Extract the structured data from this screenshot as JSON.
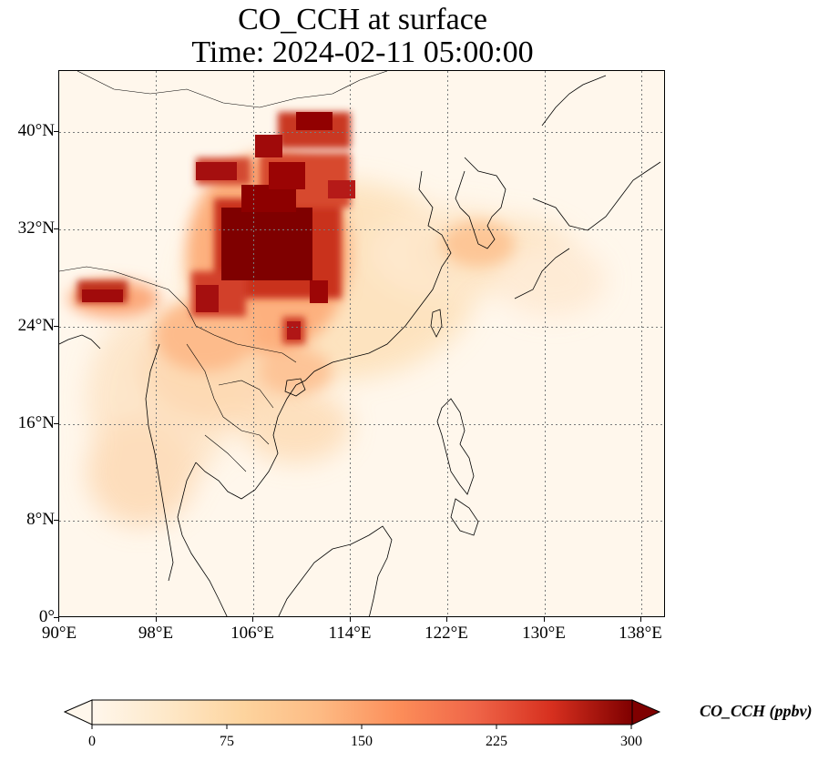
{
  "title_line1": "CO_CCH at surface",
  "title_line2": "Time: 2024-02-11 05:00:00",
  "x_ticks": [
    "90°E",
    "98°E",
    "106°E",
    "114°E",
    "122°E",
    "130°E",
    "138°E"
  ],
  "y_ticks": [
    "40°N",
    "32°N",
    "24°N",
    "16°N",
    "8°N",
    "0°"
  ],
  "colorbar": {
    "label": "CO_CCH (ppbv)",
    "ticks": [
      "0",
      "75",
      "150",
      "225",
      "300"
    ],
    "range": [
      0,
      300
    ],
    "colormap": "OrRd",
    "extend": "both"
  },
  "colors": {
    "low": "#fff7ec",
    "mid": "#fc8d59",
    "high": "#7f0000",
    "grid": "#7a7a7a"
  },
  "map": {
    "lon_range": [
      90,
      140
    ],
    "lat_range": [
      0,
      45
    ],
    "gridlines": "dotted",
    "high_concentration_region": "central and southern China"
  }
}
